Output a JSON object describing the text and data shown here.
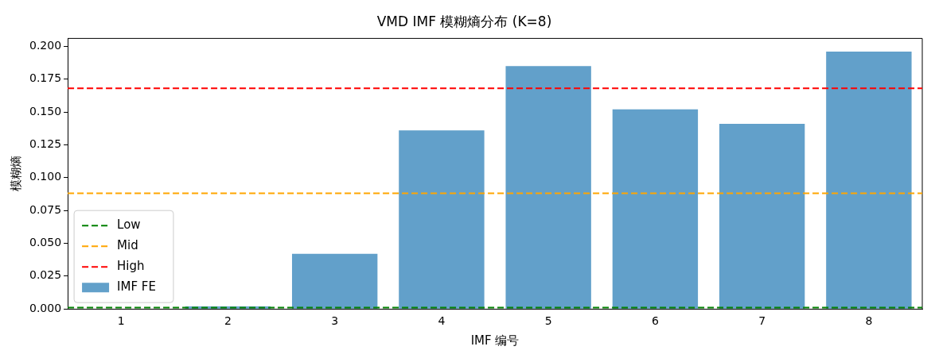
{
  "chart_data": {
    "type": "bar",
    "title": "VMD IMF 模糊熵分布 (K=8)",
    "xlabel": "IMF 编号",
    "ylabel": "模糊熵",
    "categories": [
      "1",
      "2",
      "3",
      "4",
      "5",
      "6",
      "7",
      "8"
    ],
    "series": [
      {
        "name": "IMF FE",
        "color": "#62a0ca",
        "values": [
          0,
          0.002,
          0.042,
          0.136,
          0.185,
          0.152,
          0.141,
          0.196
        ]
      }
    ],
    "ylim": [
      0,
      0.206
    ],
    "yticks": [
      {
        "value": 0,
        "label": "0.000"
      },
      {
        "value": 0.025,
        "label": "0.025"
      },
      {
        "value": 0.05,
        "label": "0.050"
      },
      {
        "value": 0.075,
        "label": "0.075"
      },
      {
        "value": 0.1,
        "label": "0.100"
      },
      {
        "value": 0.125,
        "label": "0.125"
      },
      {
        "value": 0.15,
        "label": "0.150"
      },
      {
        "value": 0.175,
        "label": "0.175"
      },
      {
        "value": 0.2,
        "label": "0.200"
      }
    ],
    "ref_lines": [
      {
        "axis": "y",
        "value": 0.001,
        "label": "Low",
        "color": "#008000",
        "line_style": "dashed"
      },
      {
        "axis": "y",
        "value": 0.088,
        "label": "Mid",
        "color": "#ffa500",
        "line_style": "dashed"
      },
      {
        "axis": "y",
        "value": 0.168,
        "label": "High",
        "color": "#ff0000",
        "line_style": "dashed"
      }
    ],
    "grid": false,
    "legend": "bottom left"
  }
}
